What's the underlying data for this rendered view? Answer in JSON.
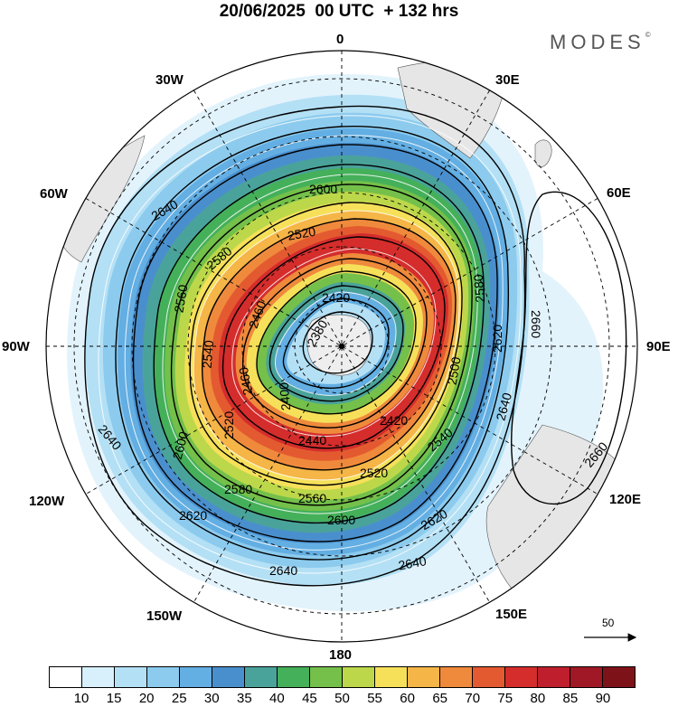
{
  "header": {
    "title": "20/06/2025  00 UTC  + 132 hrs",
    "brand": "MODES",
    "brand_mark": "©"
  },
  "map": {
    "projection": "south polar stereographic",
    "longitude_labels": {
      "top": "0",
      "top_right": "30E",
      "right_upper": "60E",
      "right": "90E",
      "right_lower": "120E",
      "bottom_right": "150E",
      "bottom": "180",
      "bottom_left": "150W",
      "left_lower": "120W",
      "left": "90W",
      "left_upper": "60W",
      "top_left": "30W"
    },
    "contour_labels": [
      "2380",
      "2400",
      "2420",
      "2440",
      "2460",
      "2500",
      "2520",
      "2540",
      "2560",
      "2580",
      "2600",
      "2620",
      "2640",
      "2660"
    ],
    "reference_vector_label": "50"
  },
  "colorbar": {
    "colors": [
      "#ffffff",
      "#d8f0fb",
      "#b4e0f5",
      "#8ccbee",
      "#63aee2",
      "#4a8fcd",
      "#4aa39a",
      "#45b05a",
      "#74c04a",
      "#bcd84a",
      "#f6e05a",
      "#f5b547",
      "#ef8a3c",
      "#e45a30",
      "#d42d2c",
      "#bf1e2d",
      "#a01825",
      "#7e1219"
    ],
    "tick_labels": [
      "10",
      "15",
      "20",
      "25",
      "30",
      "35",
      "40",
      "45",
      "50",
      "55",
      "60",
      "65",
      "70",
      "75",
      "80",
      "85",
      "90"
    ]
  }
}
